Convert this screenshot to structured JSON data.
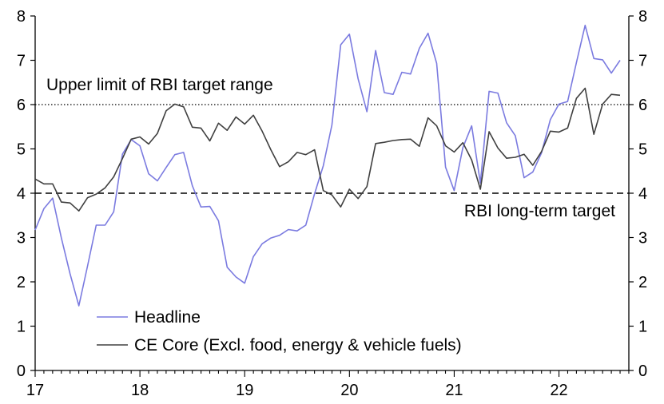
{
  "chart_data": {
    "type": "line",
    "x_ticks": [
      "17",
      "18",
      "19",
      "20",
      "21",
      "22"
    ],
    "y_ticks": [
      "0",
      "1",
      "2",
      "3",
      "4",
      "5",
      "6",
      "7",
      "8"
    ],
    "ylim": [
      0,
      8
    ],
    "x_domain": [
      2017.0,
      2022.667
    ],
    "legend_position": "bottom-left",
    "grid": false,
    "reference_lines": [
      {
        "label": "Upper limit of RBI target range",
        "value": 6,
        "style": "dotted"
      },
      {
        "label": "RBI long-term target",
        "value": 4,
        "style": "dashed"
      }
    ],
    "colors": {
      "headline": "#7b7be0",
      "core": "#404040"
    },
    "series": [
      {
        "name": "Headline",
        "key": "headline",
        "x": [
          2017.0,
          2017.083,
          2017.167,
          2017.25,
          2017.333,
          2017.417,
          2017.5,
          2017.583,
          2017.667,
          2017.75,
          2017.833,
          2017.917,
          2018.0,
          2018.083,
          2018.167,
          2018.25,
          2018.333,
          2018.417,
          2018.5,
          2018.583,
          2018.667,
          2018.75,
          2018.833,
          2018.917,
          2019.0,
          2019.083,
          2019.167,
          2019.25,
          2019.333,
          2019.417,
          2019.5,
          2019.583,
          2019.667,
          2019.75,
          2019.833,
          2019.917,
          2020.0,
          2020.083,
          2020.167,
          2020.25,
          2020.333,
          2020.417,
          2020.5,
          2020.583,
          2020.667,
          2020.75,
          2020.833,
          2020.917,
          2021.0,
          2021.083,
          2021.167,
          2021.25,
          2021.333,
          2021.417,
          2021.5,
          2021.583,
          2021.667,
          2021.75,
          2021.833,
          2021.917,
          2022.0,
          2022.083,
          2022.167,
          2022.25,
          2022.333,
          2022.417,
          2022.5,
          2022.583
        ],
        "values": [
          3.17,
          3.65,
          3.89,
          2.99,
          2.18,
          1.46,
          2.36,
          3.28,
          3.28,
          3.58,
          4.88,
          5.21,
          5.07,
          4.44,
          4.28,
          4.58,
          4.87,
          4.92,
          4.17,
          3.69,
          3.7,
          3.38,
          2.33,
          2.11,
          1.97,
          2.57,
          2.86,
          2.99,
          3.05,
          3.18,
          3.15,
          3.28,
          3.99,
          4.62,
          5.54,
          7.35,
          7.59,
          6.58,
          5.84,
          7.22,
          6.27,
          6.23,
          6.73,
          6.69,
          7.27,
          7.61,
          6.93,
          4.59,
          4.06,
          5.03,
          5.52,
          4.23,
          6.3,
          6.26,
          5.59,
          5.3,
          4.35,
          4.48,
          4.91,
          5.66,
          6.01,
          6.07,
          6.95,
          7.79,
          7.04,
          7.01,
          6.71,
          7.0
        ]
      },
      {
        "name": "CE Core (Excl. food, energy & vehicle fuels)",
        "key": "core",
        "x": [
          2017.0,
          2017.083,
          2017.167,
          2017.25,
          2017.333,
          2017.417,
          2017.5,
          2017.583,
          2017.667,
          2017.75,
          2017.833,
          2017.917,
          2018.0,
          2018.083,
          2018.167,
          2018.25,
          2018.333,
          2018.417,
          2018.5,
          2018.583,
          2018.667,
          2018.75,
          2018.833,
          2018.917,
          2019.0,
          2019.083,
          2019.167,
          2019.25,
          2019.333,
          2019.417,
          2019.5,
          2019.583,
          2019.667,
          2019.75,
          2019.833,
          2019.917,
          2020.0,
          2020.083,
          2020.167,
          2020.25,
          2020.333,
          2020.417,
          2020.5,
          2020.583,
          2020.667,
          2020.75,
          2020.833,
          2020.917,
          2021.0,
          2021.083,
          2021.167,
          2021.25,
          2021.333,
          2021.417,
          2021.5,
          2021.583,
          2021.667,
          2021.75,
          2021.833,
          2021.917,
          2022.0,
          2022.083,
          2022.167,
          2022.25,
          2022.333,
          2022.417,
          2022.5,
          2022.583
        ],
        "values": [
          4.32,
          4.21,
          4.21,
          3.8,
          3.78,
          3.6,
          3.9,
          3.98,
          4.12,
          4.37,
          4.78,
          5.22,
          5.27,
          5.11,
          5.35,
          5.86,
          6.01,
          5.95,
          5.49,
          5.47,
          5.18,
          5.58,
          5.42,
          5.72,
          5.56,
          5.76,
          5.4,
          4.98,
          4.6,
          4.71,
          4.92,
          4.87,
          4.98,
          4.06,
          3.96,
          3.69,
          4.09,
          3.88,
          4.15,
          5.12,
          5.15,
          5.19,
          5.21,
          5.22,
          5.06,
          5.7,
          5.52,
          5.07,
          4.93,
          5.14,
          4.75,
          4.09,
          5.39,
          5.02,
          4.79,
          4.81,
          4.88,
          4.63,
          4.94,
          5.4,
          5.38,
          5.47,
          6.14,
          6.37,
          5.33,
          6.01,
          6.23,
          6.21
        ]
      }
    ]
  }
}
